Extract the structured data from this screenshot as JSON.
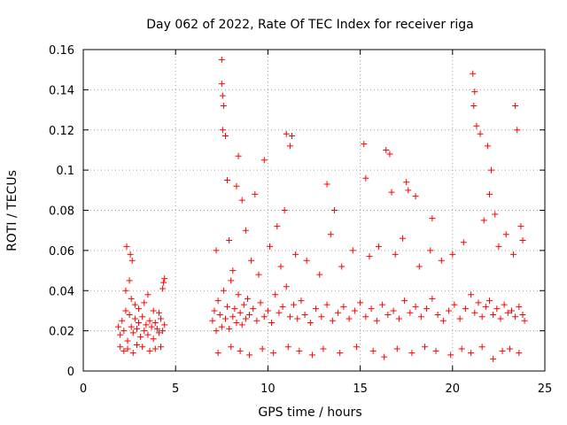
{
  "chart_data": {
    "type": "scatter",
    "title": "Day 062 of 2022, Rate Of TEC Index for receiver riga",
    "xlabel": "GPS time / hours",
    "ylabel": "ROTI / TECUs",
    "xlim": [
      0,
      25
    ],
    "ylim": [
      0,
      0.16
    ],
    "xticks": [
      0,
      5,
      10,
      15,
      20,
      25
    ],
    "xtick_labels": [
      "0",
      "5",
      "10",
      "15",
      "20",
      "25"
    ],
    "yticks": [
      0,
      0.02,
      0.04,
      0.06,
      0.08,
      0.1,
      0.12,
      0.14,
      0.16
    ],
    "ytick_labels": [
      "0",
      "0.02",
      "0.04",
      "0.06",
      "0.08",
      "0.1",
      "0.12",
      "0.14",
      "0.16"
    ],
    "grid": true,
    "marker": "+",
    "color": "#ff0000",
    "series": [
      {
        "name": "ROTI",
        "x": [
          1.9,
          2.0,
          2.1,
          2.2,
          2.3,
          2.4,
          2.5,
          2.6,
          2.7,
          2.8,
          2.9,
          3.0,
          3.1,
          3.2,
          3.3,
          3.4,
          3.5,
          3.6,
          3.7,
          3.8,
          3.9,
          4.0,
          4.1,
          4.2,
          4.3,
          4.4,
          2.3,
          2.5,
          2.6,
          2.8,
          3.0,
          3.3,
          3.5,
          3.8,
          4.1,
          4.3,
          4.4,
          2.0,
          2.2,
          2.4,
          2.7,
          2.9,
          3.2,
          3.6,
          3.9,
          4.2,
          2.35,
          2.55,
          2.65,
          4.35,
          7.0,
          7.1,
          7.2,
          7.3,
          7.4,
          7.5,
          7.6,
          7.7,
          7.8,
          7.9,
          8.0,
          8.1,
          8.2,
          8.3,
          8.4,
          8.5,
          8.6,
          8.7,
          8.8,
          8.9,
          9.0,
          9.2,
          9.4,
          9.6,
          9.8,
          10.0,
          10.2,
          10.4,
          10.6,
          10.8,
          11.0,
          11.2,
          11.4,
          11.6,
          11.8,
          12.0,
          12.3,
          12.6,
          12.9,
          13.2,
          13.5,
          13.8,
          14.1,
          14.4,
          14.7,
          15.0,
          15.3,
          15.6,
          15.9,
          16.2,
          16.5,
          16.8,
          17.1,
          17.4,
          17.7,
          18.0,
          18.3,
          18.6,
          18.9,
          19.2,
          19.5,
          19.8,
          20.1,
          20.4,
          20.7,
          21.0,
          21.2,
          21.4,
          21.6,
          21.8,
          22.0,
          22.2,
          22.4,
          22.6,
          22.8,
          23.0,
          23.2,
          23.4,
          23.6,
          23.8,
          23.9,
          7.5,
          7.5,
          7.55,
          7.6,
          7.55,
          7.7,
          7.8,
          8.3,
          8.4,
          8.6,
          9.3,
          9.8,
          10.5,
          10.9,
          11.0,
          11.2,
          11.3,
          13.2,
          13.6,
          15.2,
          15.3,
          16.4,
          16.6,
          16.7,
          17.5,
          17.6,
          18.0,
          18.9,
          21.1,
          21.2,
          21.15,
          21.3,
          21.5,
          21.9,
          22.1,
          22.0,
          22.3,
          23.4,
          23.5,
          23.7,
          7.2,
          7.9,
          8.1,
          8.8,
          9.1,
          9.5,
          10.1,
          10.7,
          11.5,
          12.1,
          12.8,
          13.4,
          14.0,
          14.6,
          15.5,
          16.0,
          16.9,
          17.3,
          18.2,
          18.8,
          19.4,
          20.0,
          20.6,
          21.7,
          22.5,
          22.9,
          23.3,
          23.8,
          7.3,
          8.0,
          8.5,
          9.0,
          9.7,
          10.3,
          11.1,
          11.7,
          12.4,
          13.0,
          13.9,
          14.8,
          15.7,
          16.3,
          17.0,
          17.8,
          18.5,
          19.1,
          19.9,
          20.5,
          21.0,
          21.6,
          22.2,
          22.7,
          23.1,
          23.6
        ],
        "y": [
          0.022,
          0.018,
          0.025,
          0.02,
          0.03,
          0.015,
          0.028,
          0.022,
          0.019,
          0.026,
          0.021,
          0.024,
          0.017,
          0.027,
          0.02,
          0.023,
          0.018,
          0.025,
          0.022,
          0.016,
          0.024,
          0.021,
          0.019,
          0.026,
          0.02,
          0.023,
          0.04,
          0.045,
          0.036,
          0.033,
          0.031,
          0.034,
          0.038,
          0.03,
          0.029,
          0.041,
          0.046,
          0.012,
          0.01,
          0.011,
          0.009,
          0.013,
          0.012,
          0.01,
          0.011,
          0.012,
          0.062,
          0.058,
          0.055,
          0.044,
          0.025,
          0.03,
          0.02,
          0.035,
          0.028,
          0.022,
          0.04,
          0.026,
          0.032,
          0.021,
          0.045,
          0.027,
          0.031,
          0.024,
          0.038,
          0.029,
          0.023,
          0.033,
          0.026,
          0.036,
          0.028,
          0.031,
          0.025,
          0.034,
          0.027,
          0.03,
          0.024,
          0.038,
          0.029,
          0.032,
          0.042,
          0.027,
          0.033,
          0.026,
          0.035,
          0.028,
          0.024,
          0.031,
          0.027,
          0.033,
          0.025,
          0.029,
          0.032,
          0.026,
          0.03,
          0.034,
          0.027,
          0.031,
          0.025,
          0.033,
          0.028,
          0.03,
          0.026,
          0.035,
          0.029,
          0.032,
          0.027,
          0.031,
          0.036,
          0.028,
          0.025,
          0.03,
          0.033,
          0.026,
          0.031,
          0.038,
          0.029,
          0.034,
          0.027,
          0.032,
          0.035,
          0.028,
          0.031,
          0.026,
          0.033,
          0.029,
          0.03,
          0.027,
          0.032,
          0.028,
          0.025,
          0.155,
          0.143,
          0.137,
          0.132,
          0.12,
          0.117,
          0.095,
          0.092,
          0.107,
          0.085,
          0.088,
          0.105,
          0.072,
          0.08,
          0.118,
          0.112,
          0.117,
          0.093,
          0.08,
          0.113,
          0.096,
          0.11,
          0.108,
          0.089,
          0.094,
          0.09,
          0.087,
          0.076,
          0.148,
          0.139,
          0.132,
          0.122,
          0.118,
          0.112,
          0.1,
          0.088,
          0.078,
          0.132,
          0.12,
          0.072,
          0.06,
          0.065,
          0.05,
          0.07,
          0.055,
          0.048,
          0.062,
          0.052,
          0.058,
          0.055,
          0.048,
          0.068,
          0.052,
          0.06,
          0.057,
          0.062,
          0.058,
          0.066,
          0.052,
          0.06,
          0.055,
          0.058,
          0.064,
          0.075,
          0.062,
          0.068,
          0.058,
          0.065,
          0.009,
          0.012,
          0.01,
          0.008,
          0.011,
          0.009,
          0.012,
          0.01,
          0.008,
          0.011,
          0.009,
          0.012,
          0.01,
          0.007,
          0.011,
          0.009,
          0.012,
          0.01,
          0.008,
          0.011,
          0.009,
          0.012,
          0.006,
          0.01,
          0.011,
          0.009
        ]
      }
    ]
  }
}
